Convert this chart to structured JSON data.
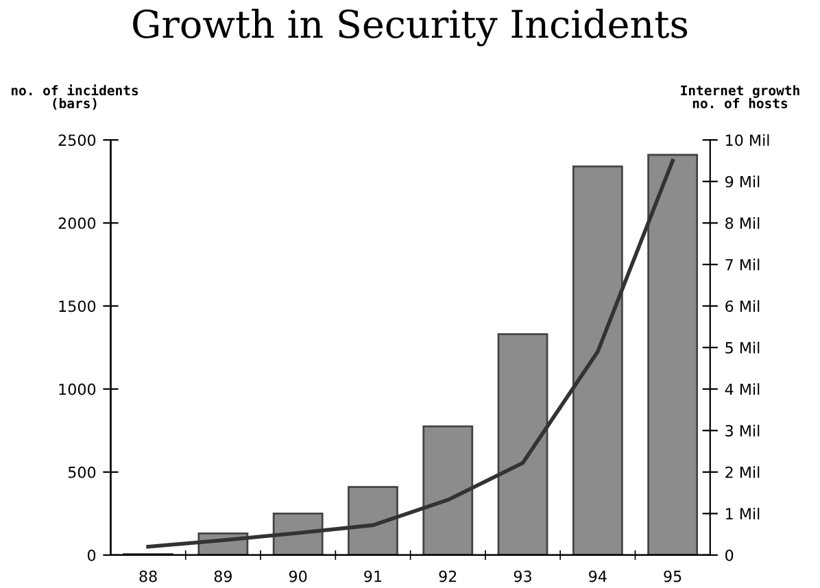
{
  "chart_data": {
    "type": "bar",
    "title": "Growth in Security Incidents",
    "ylabel": "no. of incidents\n(bars)",
    "y2label": "Internet growth\nno. of hosts",
    "categories": [
      "88",
      "89",
      "90",
      "91",
      "92",
      "93",
      "94",
      "95"
    ],
    "series": [
      {
        "color": "#8c8c8c",
        "values": [
          5,
          130,
          250,
          410,
          775,
          1330,
          2340,
          2410
        ]
      },
      {
        "type": "line",
        "axis": "y2",
        "color": "#333333",
        "values": [
          0.2,
          0.36,
          0.53,
          0.72,
          1.33,
          2.22,
          4.9,
          9.5
        ]
      }
    ],
    "ylim": [
      0,
      2500
    ],
    "yticks": [
      0,
      500,
      1000,
      1500,
      2000,
      2500
    ],
    "y2lim": [
      0,
      10
    ],
    "y2ticks": [
      0,
      {
        "value": 1,
        "label": "1 Mil"
      },
      {
        "value": 2,
        "label": "2 Mil"
      },
      {
        "value": 3,
        "label": "3 Mil"
      },
      {
        "value": 4,
        "label": "4 Mil"
      },
      {
        "value": 5,
        "label": "5 Mil"
      },
      {
        "value": 6,
        "label": "6 Mil"
      },
      {
        "value": 7,
        "label": "7 Mil"
      },
      {
        "value": 8,
        "label": "8 Mil"
      },
      {
        "value": 9,
        "label": "9 Mil"
      },
      {
        "value": 10,
        "label": "10 Mil"
      }
    ],
    "grid": false,
    "legend": false
  }
}
